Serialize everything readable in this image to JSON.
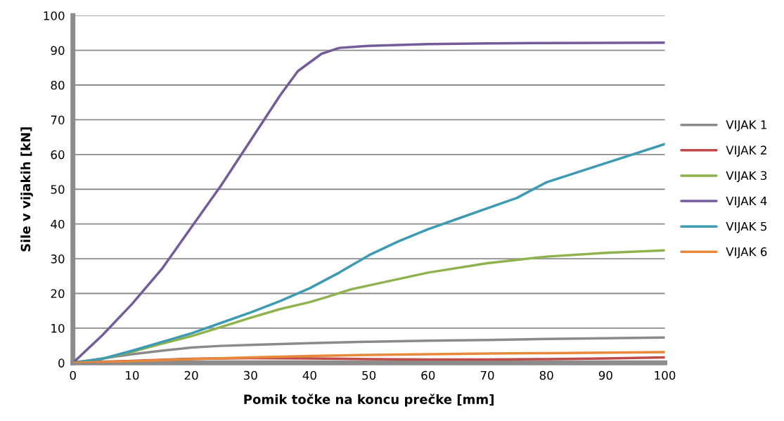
{
  "chart_data": {
    "type": "line",
    "xlabel": "Pomik točke na koncu prečke [mm]",
    "ylabel": "Sile v vijakih [kN]",
    "xlim": [
      0,
      100
    ],
    "xticks": [
      0,
      10,
      20,
      30,
      40,
      50,
      60,
      70,
      80,
      90,
      100
    ],
    "ylim": [
      0,
      100
    ],
    "yticks": [
      0,
      10,
      20,
      30,
      40,
      50,
      60,
      70,
      80,
      90,
      100
    ],
    "grid": "y",
    "legend": "right",
    "marker": "none",
    "line_style": "solid",
    "series": [
      {
        "name": "VIJAK 1",
        "color": "#8a8a8a",
        "x": [
          0,
          5,
          10,
          15,
          20,
          25,
          30,
          40,
          50,
          60,
          70,
          80,
          90,
          100
        ],
        "values": [
          0,
          1.3,
          2.5,
          3.5,
          4.4,
          4.9,
          5.2,
          5.7,
          6.1,
          6.4,
          6.6,
          6.9,
          7.1,
          7.3
        ]
      },
      {
        "name": "VIJAK 2",
        "color": "#be4b48",
        "x": [
          0,
          10,
          20,
          30,
          40,
          50,
          60,
          70,
          80,
          90,
          100
        ],
        "values": [
          0,
          0.6,
          1.2,
          1.4,
          1.3,
          1.1,
          1.0,
          1.0,
          1.1,
          1.3,
          1.6
        ]
      },
      {
        "name": "VIJAK 3",
        "color": "#8eb34e",
        "x": [
          0,
          5,
          10,
          15,
          20,
          25,
          30,
          35,
          40,
          43,
          47,
          50,
          60,
          70,
          80,
          90,
          100
        ],
        "values": [
          0,
          1.2,
          3.2,
          5.5,
          7.7,
          10.3,
          13,
          15.5,
          17.5,
          19,
          21.2,
          22.3,
          26,
          28.7,
          30.6,
          31.7,
          32.4
        ]
      },
      {
        "name": "VIJAK 4",
        "color": "#745c9a",
        "x": [
          0,
          5,
          10,
          15,
          20,
          25,
          30,
          35,
          38,
          42,
          45,
          50,
          60,
          70,
          80,
          100
        ],
        "values": [
          0,
          8,
          17,
          27,
          39,
          51,
          64,
          77,
          84,
          89,
          90.7,
          91.3,
          91.8,
          92,
          92.1,
          92.2
        ]
      },
      {
        "name": "VIJAK 5",
        "color": "#3d9ab3",
        "x": [
          0,
          5,
          10,
          15,
          20,
          25,
          30,
          35,
          40,
          45,
          50,
          55,
          60,
          65,
          70,
          75,
          80,
          90,
          100
        ],
        "values": [
          0,
          1.2,
          3.5,
          6,
          8.5,
          11.5,
          14.5,
          17.8,
          21.5,
          26,
          31,
          35,
          38.5,
          41.5,
          44.5,
          47.5,
          52,
          57.5,
          63
        ]
      },
      {
        "name": "VIJAK 6",
        "color": "#e8883a",
        "x": [
          0,
          10,
          20,
          30,
          40,
          50,
          60,
          70,
          80,
          100
        ],
        "values": [
          0,
          0.5,
          1.1,
          1.6,
          2,
          2.3,
          2.5,
          2.7,
          2.8,
          3.1
        ]
      }
    ]
  }
}
